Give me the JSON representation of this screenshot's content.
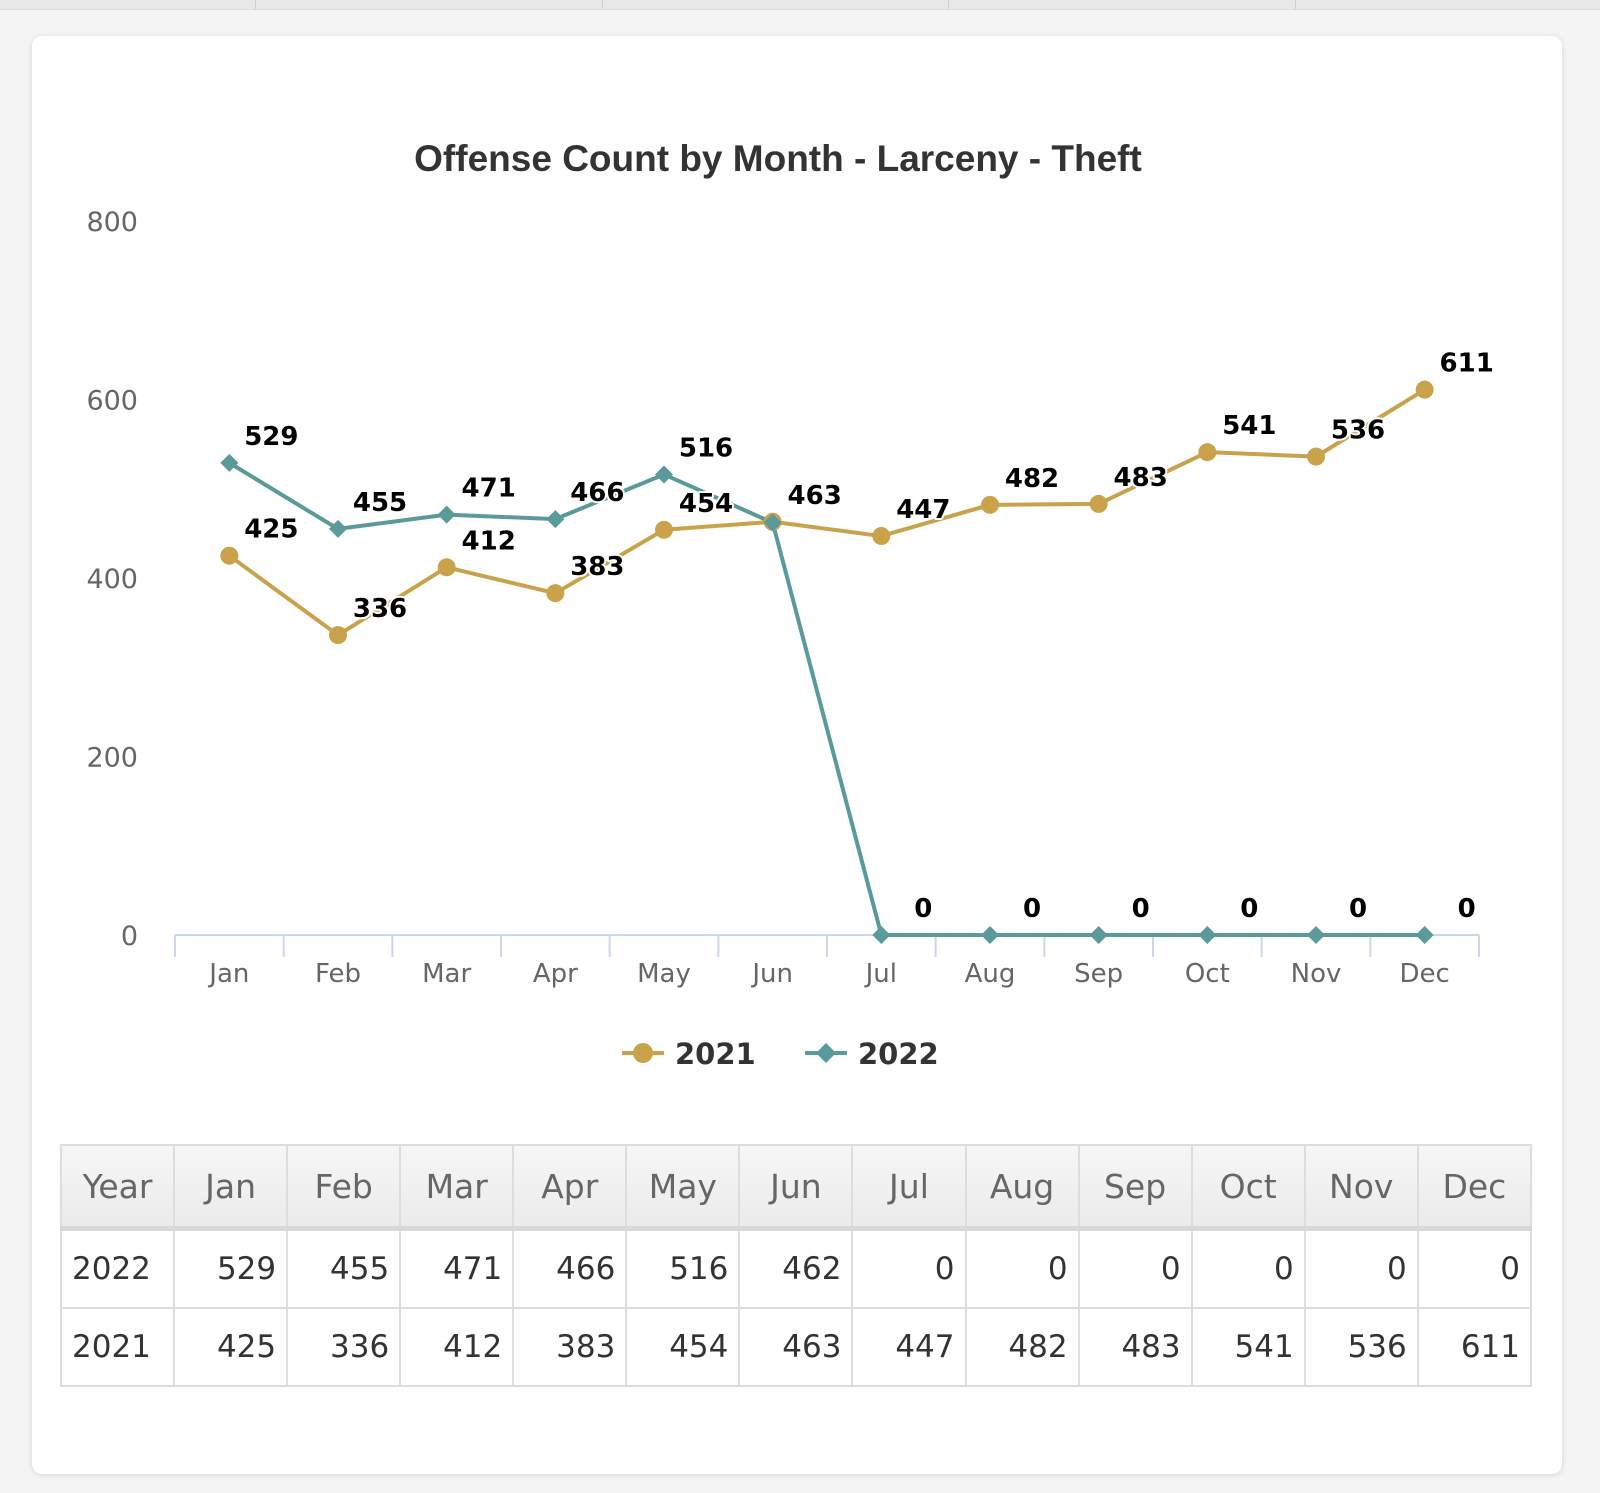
{
  "chart_data": {
    "type": "line",
    "title": "Offense Count by Month - Larceny - Theft",
    "categories": [
      "Jan",
      "Feb",
      "Mar",
      "Apr",
      "May",
      "Jun",
      "Jul",
      "Aug",
      "Sep",
      "Oct",
      "Nov",
      "Dec"
    ],
    "series": [
      {
        "name": "2021",
        "color": "#c9a24b",
        "marker": "circle",
        "values": [
          425,
          336,
          412,
          383,
          454,
          463,
          447,
          482,
          483,
          541,
          536,
          611
        ]
      },
      {
        "name": "2022",
        "color": "#5a9a9b",
        "marker": "diamond",
        "values": [
          529,
          455,
          471,
          466,
          516,
          462,
          0,
          0,
          0,
          0,
          0,
          0
        ]
      }
    ],
    "data_labels": {
      "2021": [
        "425",
        "336",
        "412",
        "383",
        "454",
        "463",
        "447",
        "482",
        "483",
        "541",
        "536",
        "611"
      ],
      "2022": [
        "529",
        "455",
        "471",
        "466",
        "516",
        "",
        "0",
        "0",
        "0",
        "0",
        "0",
        "0"
      ]
    },
    "yticks": [
      "0",
      "200",
      "400",
      "600",
      "800"
    ],
    "ylim": [
      0,
      800
    ],
    "xlabel": "",
    "ylabel": "",
    "legend_position": "bottom-center"
  },
  "table": {
    "headers": [
      "Year",
      "Jan",
      "Feb",
      "Mar",
      "Apr",
      "May",
      "Jun",
      "Jul",
      "Aug",
      "Sep",
      "Oct",
      "Nov",
      "Dec"
    ],
    "rows": [
      [
        "2022",
        "529",
        "455",
        "471",
        "466",
        "516",
        "462",
        "0",
        "0",
        "0",
        "0",
        "0",
        "0"
      ],
      [
        "2021",
        "425",
        "336",
        "412",
        "383",
        "454",
        "463",
        "447",
        "482",
        "483",
        "541",
        "536",
        "611"
      ]
    ]
  }
}
